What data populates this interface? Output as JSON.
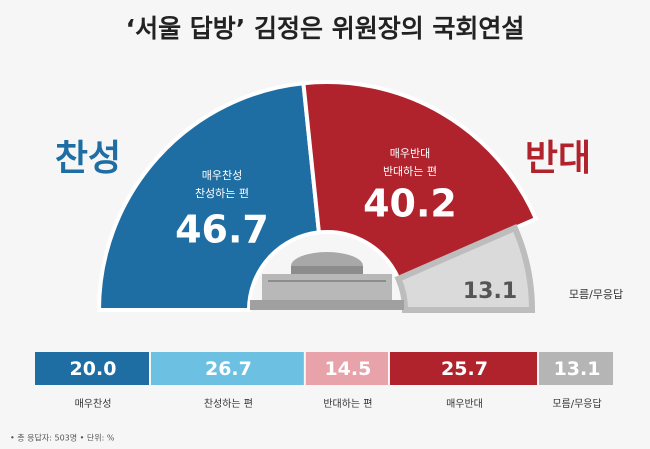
{
  "title": "‘서울 답방’ 김정은 위원장의 국회연설",
  "chart_data": [
    {
      "type": "semicircle",
      "categories": [
        "찬성",
        "반대",
        "모름/무응답"
      ],
      "values": [
        46.7,
        40.2,
        13.1
      ],
      "colors": [
        "#1f6ea3",
        "#b0232d",
        "#dadada"
      ],
      "inner_labels": [
        [
          "매우찬성",
          "찬성하는 편"
        ],
        [
          "매우반대",
          "반대하는 편"
        ],
        null
      ]
    },
    {
      "type": "stacked-bar",
      "categories": [
        "매우찬성",
        "찬성하는 편",
        "반대하는 편",
        "매우반대",
        "모름/무응답"
      ],
      "values": [
        20,
        26.7,
        14.5,
        25.7,
        13.1
      ],
      "value_labels": [
        "20.0",
        "26.7",
        "14.5",
        "25.7",
        "13.1"
      ],
      "colors": [
        "#1f6ea3",
        "#6cc1e2",
        "#e8a2a9",
        "#b0232d",
        "#b5b5b5"
      ]
    }
  ],
  "footnote": "• 총 응답자: 503명 • 단위: %"
}
